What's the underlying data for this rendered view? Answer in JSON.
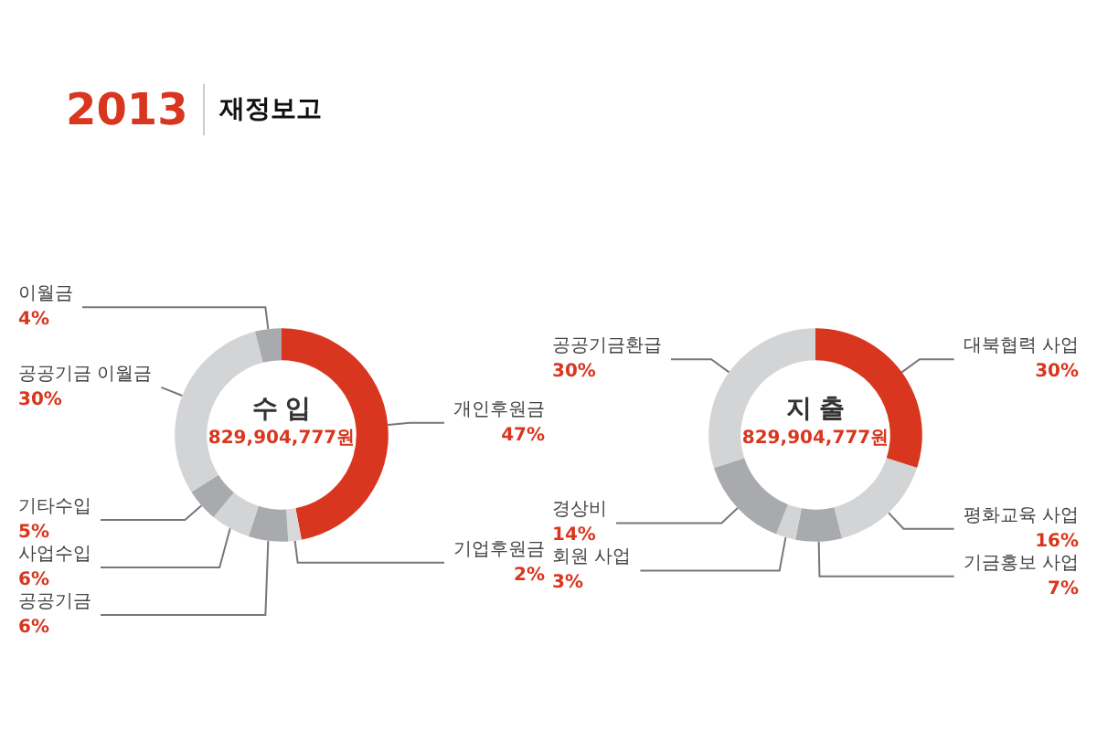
{
  "chart_data": [
    {
      "type": "donut",
      "title": "수 입",
      "subtitle": "829,904,777원",
      "annotations": [
        "2013",
        "재정보고"
      ],
      "categories": [
        "개인후원금",
        "기업후원금",
        "공공기금",
        "사업수입",
        "기타수입",
        "공공기금 이월금",
        "이월금"
      ],
      "values": [
        47,
        2,
        6,
        6,
        5,
        30,
        4
      ],
      "value_labels": [
        "47%",
        "2%",
        "6%",
        "6%",
        "5%",
        "30%",
        "4%"
      ],
      "colors": [
        "#d9361f",
        "#d9d9db",
        "#a9aaad",
        "#d3d4d6",
        "#a9aaad",
        "#d3d4d6",
        "#a9aaad"
      ],
      "legend": false
    },
    {
      "type": "donut",
      "title": "지 출",
      "subtitle": "829,904,777원",
      "categories": [
        "대북협력 사업",
        "평화교육 사업",
        "기금홍보 사업",
        "회원 사업",
        "경상비",
        "공공기금환급"
      ],
      "values": [
        30,
        16,
        7,
        3,
        14,
        30
      ],
      "value_labels": [
        "30%",
        "16%",
        "7%",
        "3%",
        "14%",
        "30%"
      ],
      "colors": [
        "#d9361f",
        "#d3d4d6",
        "#a9aaad",
        "#d3d4d6",
        "#a9aaad",
        "#d3d4d6"
      ],
      "legend": false
    }
  ]
}
